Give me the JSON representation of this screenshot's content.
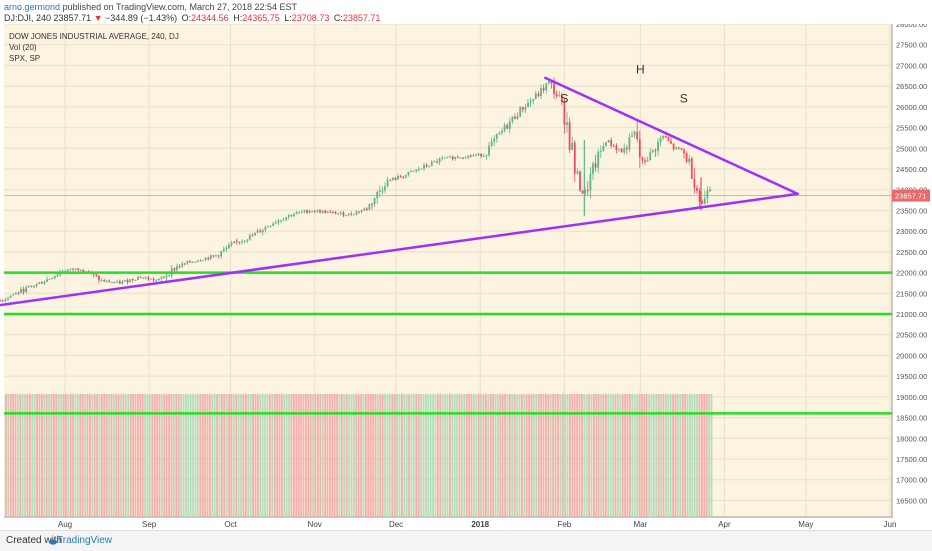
{
  "header": {
    "user": "arno.germond",
    "published_text": "published on TradingView.com, March 27, 2018 22:54 EST",
    "symbol": "DJ:DJI, 240",
    "last": "23857.71",
    "change_arrow": "▼",
    "change": "−344.89 (−1.43%)",
    "open_label": "O:",
    "open": "24344.56",
    "high_label": "H:",
    "high": "24365.75",
    "low_label": "L:",
    "low": "23708.73",
    "close_label": "C:",
    "close": "23857.71"
  },
  "legend": {
    "series": "DOW JONES INDUSTRIAL AVERAGE, 240, DJ",
    "volume": "Vol (20)",
    "compare": "SPX, SP"
  },
  "footer": {
    "created_with": "Created with",
    "brand": "TradingView"
  },
  "colors": {
    "background": "#fdf3e1",
    "up": "#53b987",
    "down": "#eb4d5c",
    "trendline": "#9b30ff",
    "support": "#22e022",
    "price_line": "#e96a6a",
    "vol_up": "#a8d8b5",
    "vol_down": "#f2a3a3"
  },
  "chart_data": {
    "type": "candlestick",
    "title": "DOW JONES INDUSTRIAL AVERAGE, 240, DJ",
    "x_ticks": [
      "Aug",
      "Sep",
      "Oct",
      "Nov",
      "Dec",
      "2018",
      "Feb",
      "Mar",
      "Apr",
      "May",
      "Jun"
    ],
    "y_ticks": [
      16500,
      17000,
      17500,
      18000,
      18500,
      19000,
      19500,
      20000,
      20500,
      21000,
      21500,
      22000,
      22500,
      23000,
      23500,
      24000,
      24500,
      25000,
      25500,
      26000,
      26500,
      27000,
      27500,
      28000
    ],
    "ylim": [
      16100,
      28000
    ],
    "last_price": "23857.71",
    "price_path": [
      [
        "2017-07-03",
        21150
      ],
      [
        "2017-07-10",
        21400
      ],
      [
        "2017-07-17",
        21600
      ],
      [
        "2017-07-24",
        21800
      ],
      [
        "2017-07-31",
        22050
      ],
      [
        "2017-08-07",
        22100
      ],
      [
        "2017-08-14",
        21800
      ],
      [
        "2017-08-21",
        21750
      ],
      [
        "2017-08-28",
        21900
      ],
      [
        "2017-09-04",
        21800
      ],
      [
        "2017-09-11",
        22150
      ],
      [
        "2017-09-18",
        22300
      ],
      [
        "2017-09-25",
        22400
      ],
      [
        "2017-10-02",
        22700
      ],
      [
        "2017-10-09",
        22900
      ],
      [
        "2017-10-16",
        23200
      ],
      [
        "2017-10-23",
        23400
      ],
      [
        "2017-10-30",
        23500
      ],
      [
        "2017-11-06",
        23450
      ],
      [
        "2017-11-13",
        23400
      ],
      [
        "2017-11-20",
        23550
      ],
      [
        "2017-11-27",
        24200
      ],
      [
        "2017-12-04",
        24350
      ],
      [
        "2017-12-11",
        24550
      ],
      [
        "2017-12-18",
        24750
      ],
      [
        "2017-12-25",
        24800
      ],
      [
        "2018-01-02",
        24850
      ],
      [
        "2018-01-08",
        25350
      ],
      [
        "2018-01-15",
        25900
      ],
      [
        "2018-01-22",
        26300
      ],
      [
        "2018-01-26",
        26600
      ],
      [
        "2018-01-30",
        26150
      ],
      [
        "2018-02-02",
        25500
      ],
      [
        "2018-02-05",
        24300
      ],
      [
        "2018-02-08",
        23860
      ],
      [
        "2018-02-12",
        24600
      ],
      [
        "2018-02-16",
        25200
      ],
      [
        "2018-02-22",
        24900
      ],
      [
        "2018-02-27",
        25400
      ],
      [
        "2018-03-01",
        24600
      ],
      [
        "2018-03-05",
        24900
      ],
      [
        "2018-03-09",
        25300
      ],
      [
        "2018-03-13",
        25000
      ],
      [
        "2018-03-16",
        24950
      ],
      [
        "2018-03-19",
        24600
      ],
      [
        "2018-03-22",
        23950
      ],
      [
        "2018-03-23",
        23550
      ],
      [
        "2018-03-26",
        24200
      ],
      [
        "2018-03-27",
        23858
      ]
    ],
    "annotations": [
      {
        "text": "S",
        "date": "2018-02-01",
        "price": 26100
      },
      {
        "text": "H",
        "date": "2018-03-01",
        "price": 26800
      },
      {
        "text": "S",
        "date": "2018-03-17",
        "price": 26100
      }
    ],
    "trendlines": [
      {
        "name": "lower",
        "from": [
          "2017-07-01",
          21150
        ],
        "to": [
          "2018-04-28",
          23900
        ]
      },
      {
        "name": "upper",
        "from": [
          "2018-01-25",
          26700
        ],
        "to": [
          "2018-04-28",
          23900
        ]
      }
    ],
    "support_lines": [
      22000,
      21000,
      18600
    ]
  }
}
